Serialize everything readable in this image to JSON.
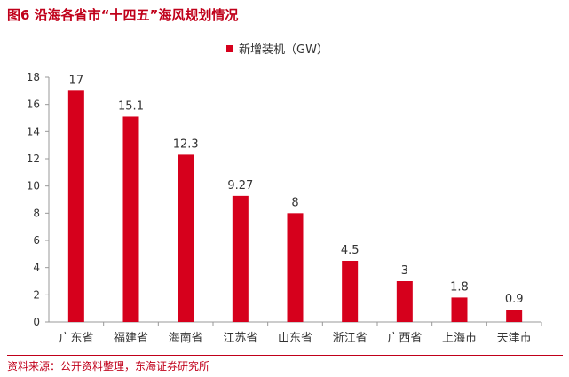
{
  "figure": {
    "title": "图6  沿海各省市“十四五”海风规划情况",
    "source": "资料来源：公开资料整理，东海证券研究所"
  },
  "colors": {
    "accent": "#c0001a",
    "bar": "#d6001c",
    "axis": "#999999",
    "text": "#333333"
  },
  "chart_data": {
    "type": "bar",
    "categories": [
      "广东省",
      "福建省",
      "海南省",
      "江苏省",
      "山东省",
      "浙江省",
      "广西省",
      "上海市",
      "天津市"
    ],
    "series": [
      {
        "name": "新增装机（GW）",
        "values": [
          17,
          15.1,
          12.3,
          9.27,
          8,
          4.5,
          3,
          1.8,
          0.9
        ]
      }
    ],
    "data_labels": [
      "17",
      "15.1",
      "12.3",
      "9.27",
      "8",
      "4.5",
      "3",
      "1.8",
      "0.9"
    ],
    "yticks": [
      "0",
      "2",
      "4",
      "6",
      "8",
      "10",
      "12",
      "14",
      "16",
      "18"
    ],
    "ylim": [
      0,
      18
    ],
    "grid": false,
    "legend_position": "top-center"
  }
}
